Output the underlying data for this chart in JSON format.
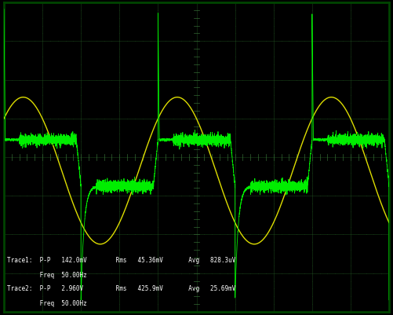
{
  "bg_color": "#000000",
  "trace1_color": "#00ee00",
  "trace2_color": "#dddd00",
  "fig_width": 5.01,
  "fig_height": 4.02,
  "dpi": 100,
  "border_color": "#004400",
  "status_lines": [
    [
      "Trace1:  P-P",
      "142.0mV",
      "Rms",
      "45.36mV",
      "Avg",
      "828.3uV"
    ],
    [
      "         Freq",
      "50.00Hz"
    ],
    [
      "Trace2:  P-P",
      "2.960V",
      "Rms",
      "425.9mV",
      "Avg",
      "25.69mV"
    ],
    [
      "         Freq",
      "50.00Hz"
    ]
  ]
}
